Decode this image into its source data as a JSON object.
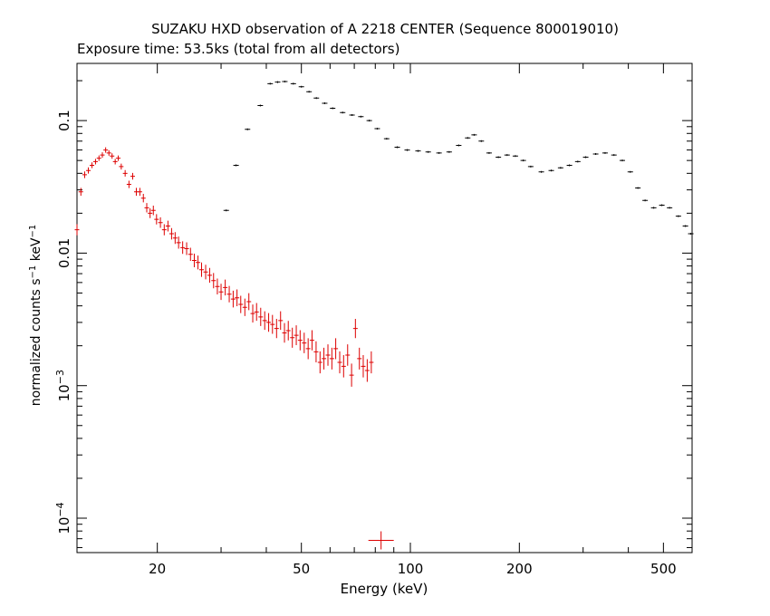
{
  "chart_data": {
    "type": "scatter",
    "title": "SUZAKU HXD observation of A 2218 CENTER (Sequence 800019010)",
    "subtitle": "Exposure time: 53.5ks (total from all detectors)",
    "xlabel": "Energy (keV)",
    "ylabel": {
      "base": "normalized counts s",
      "sup1": "−1",
      "mid": " keV",
      "sup2": "−1"
    },
    "xscale": "log",
    "yscale": "log",
    "xlim": [
      12,
      600
    ],
    "ylim": [
      5.5e-05,
      0.27
    ],
    "xticks": [
      {
        "value": 20,
        "label": "20"
      },
      {
        "value": 50,
        "label": "50"
      },
      {
        "value": 100,
        "label": "100"
      },
      {
        "value": 200,
        "label": "200"
      },
      {
        "value": 500,
        "label": "500"
      }
    ],
    "yticks": [
      {
        "value": 0.1,
        "label": "0.1"
      },
      {
        "value": 0.01,
        "label": "0.01"
      },
      {
        "value": 0.001,
        "label": "10",
        "exp": "−3"
      },
      {
        "value": 0.0001,
        "label": "10",
        "exp": "−4"
      }
    ],
    "grid": false,
    "series": [
      {
        "color": "#000000",
        "points": [
          [
            31,
            0.021
          ],
          [
            33,
            0.046
          ],
          [
            35.5,
            0.086
          ],
          [
            38.5,
            0.13
          ],
          [
            41,
            0.19
          ],
          [
            43,
            0.195
          ],
          [
            45,
            0.197
          ],
          [
            47.5,
            0.19
          ],
          [
            50,
            0.18
          ],
          [
            52.5,
            0.165
          ],
          [
            55,
            0.148
          ],
          [
            58,
            0.135
          ],
          [
            61,
            0.124
          ],
          [
            65,
            0.115
          ],
          [
            69,
            0.11
          ],
          [
            73,
            0.107
          ],
          [
            77,
            0.1
          ],
          [
            81,
            0.087
          ],
          [
            86,
            0.073
          ],
          [
            92,
            0.063
          ],
          [
            98,
            0.06
          ],
          [
            105,
            0.059
          ],
          [
            112,
            0.058
          ],
          [
            120,
            0.057
          ],
          [
            128,
            0.058
          ],
          [
            136,
            0.065
          ],
          [
            144,
            0.074
          ],
          [
            150,
            0.078
          ],
          [
            157,
            0.07
          ],
          [
            165,
            0.057
          ],
          [
            175,
            0.053
          ],
          [
            185,
            0.055
          ],
          [
            195,
            0.054
          ],
          [
            205,
            0.05
          ],
          [
            215,
            0.045
          ],
          [
            230,
            0.041
          ],
          [
            245,
            0.042
          ],
          [
            260,
            0.044
          ],
          [
            275,
            0.046
          ],
          [
            290,
            0.049
          ],
          [
            305,
            0.053
          ],
          [
            325,
            0.056
          ],
          [
            345,
            0.057
          ],
          [
            365,
            0.055
          ],
          [
            385,
            0.05
          ],
          [
            405,
            0.041
          ],
          [
            425,
            0.031
          ],
          [
            445,
            0.025
          ],
          [
            470,
            0.022
          ],
          [
            495,
            0.023
          ],
          [
            520,
            0.022
          ],
          [
            550,
            0.019
          ],
          [
            575,
            0.016
          ],
          [
            595,
            0.014
          ]
        ]
      },
      {
        "color": "#dd0000",
        "points": [
          [
            12.0,
            0.015
          ],
          [
            12.3,
            0.029
          ],
          [
            12.6,
            0.039
          ],
          [
            12.9,
            0.042
          ],
          [
            13.2,
            0.046
          ],
          [
            13.5,
            0.049
          ],
          [
            13.8,
            0.052
          ],
          [
            14.1,
            0.055
          ],
          [
            14.4,
            0.06
          ],
          [
            14.7,
            0.057
          ],
          [
            15.0,
            0.054
          ],
          [
            15.3,
            0.049
          ],
          [
            15.6,
            0.052
          ],
          [
            15.9,
            0.045
          ],
          [
            16.3,
            0.04
          ],
          [
            16.7,
            0.033
          ],
          [
            17.1,
            0.038
          ],
          [
            17.5,
            0.029
          ],
          [
            17.9,
            0.029
          ],
          [
            18.3,
            0.026
          ],
          [
            18.7,
            0.022
          ],
          [
            19.1,
            0.02
          ],
          [
            19.5,
            0.021
          ],
          [
            19.9,
            0.018
          ],
          [
            20.4,
            0.017
          ],
          [
            20.9,
            0.015
          ],
          [
            21.4,
            0.016
          ],
          [
            21.9,
            0.014
          ],
          [
            22.4,
            0.013
          ],
          [
            22.9,
            0.012
          ],
          [
            23.5,
            0.011
          ],
          [
            24.1,
            0.0108
          ],
          [
            24.7,
            0.0098
          ],
          [
            25.3,
            0.0088
          ],
          [
            25.9,
            0.0085
          ],
          [
            26.5,
            0.0075
          ],
          [
            27.2,
            0.0072
          ],
          [
            27.9,
            0.0068
          ],
          [
            28.6,
            0.0062
          ],
          [
            29.3,
            0.0056
          ],
          [
            30.0,
            0.0051
          ],
          [
            30.8,
            0.0055
          ],
          [
            31.6,
            0.0049
          ],
          [
            32.4,
            0.0045
          ],
          [
            33.2,
            0.0046
          ],
          [
            34.0,
            0.0041
          ],
          [
            34.9,
            0.0039
          ],
          [
            35.8,
            0.0043
          ],
          [
            36.7,
            0.0035
          ],
          [
            37.6,
            0.0036
          ],
          [
            38.6,
            0.0033
          ],
          [
            39.6,
            0.0031
          ],
          [
            40.6,
            0.003
          ],
          [
            41.6,
            0.0029
          ],
          [
            42.7,
            0.0027
          ],
          [
            43.8,
            0.0031
          ],
          [
            44.9,
            0.0025
          ],
          [
            46.0,
            0.0026
          ],
          [
            47.2,
            0.0023
          ],
          [
            48.4,
            0.0024
          ],
          [
            49.6,
            0.0022
          ],
          [
            50.9,
            0.0021
          ],
          [
            52.2,
            0.0019
          ],
          [
            53.5,
            0.0022
          ],
          [
            54.9,
            0.0018
          ],
          [
            56.3,
            0.0015
          ],
          [
            57.7,
            0.0016
          ],
          [
            59.2,
            0.0017
          ],
          [
            60.7,
            0.0016
          ],
          [
            62.2,
            0.0019
          ],
          [
            63.8,
            0.0015
          ],
          [
            65.4,
            0.0014
          ],
          [
            67.1,
            0.0017
          ],
          [
            68.8,
            0.0012
          ],
          [
            70.5,
            0.0027
          ],
          [
            72.3,
            0.0016
          ],
          [
            74.1,
            0.0014
          ],
          [
            76.0,
            0.0013
          ],
          [
            78.0,
            0.0015
          ]
        ]
      },
      {
        "color": "#dd0000",
        "points": [
          [
            83,
            6.8e-05
          ]
        ]
      }
    ]
  }
}
